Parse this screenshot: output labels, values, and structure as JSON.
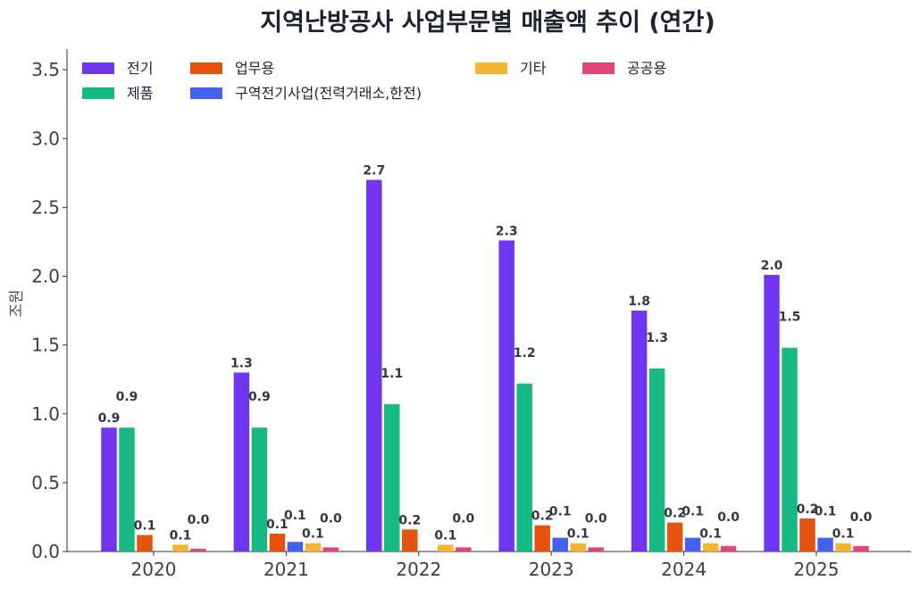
{
  "chart_data": {
    "type": "bar",
    "title": "지역난방공사 사업부문별 매출액 추이 (연간)",
    "xlabel": "",
    "ylabel": "조원",
    "ylim": [
      0,
      3.65
    ],
    "yticks": [
      "0.0",
      "0.5",
      "1.0",
      "1.5",
      "2.0",
      "2.5",
      "3.0",
      "3.5"
    ],
    "ytick_values": [
      0,
      0.5,
      1.0,
      1.5,
      2.0,
      2.5,
      3.0,
      3.5
    ],
    "grid": false,
    "legend_position": "top-left",
    "categories": [
      "2020",
      "2021",
      "2022",
      "2023",
      "2024",
      "2025"
    ],
    "series": [
      {
        "name": "전기",
        "color": "#6f35f0",
        "values": [
          0.9,
          1.3,
          2.7,
          2.26,
          1.75,
          2.01
        ]
      },
      {
        "name": "제품",
        "color": "#16b884",
        "values": [
          0.9,
          0.9,
          1.07,
          1.22,
          1.33,
          1.48
        ]
      },
      {
        "name": "업무용",
        "color": "#e4540e",
        "values": [
          0.12,
          0.13,
          0.16,
          0.19,
          0.21,
          0.24
        ]
      },
      {
        "name": "구역전기사업(전력거래소,한전)",
        "color": "#4361ee",
        "values": [
          0.0,
          0.07,
          0.0,
          0.1,
          0.1,
          0.1
        ]
      },
      {
        "name": "기타",
        "color": "#f4b630",
        "values": [
          0.05,
          0.06,
          0.05,
          0.06,
          0.06,
          0.06
        ]
      },
      {
        "name": "공공용",
        "color": "#e0457b",
        "values": [
          0.02,
          0.03,
          0.03,
          0.03,
          0.04,
          0.04
        ]
      }
    ],
    "data_labels": [
      [
        "0.9",
        "1.3",
        "2.7",
        "2.3",
        "1.8",
        "2.0"
      ],
      [
        "0.9",
        "0.9",
        "1.1",
        "1.2",
        "1.3",
        "1.5"
      ],
      [
        "0.1",
        "0.1",
        "0.2",
        "0.2",
        "0.2",
        "0.2"
      ],
      [
        "",
        "0.1",
        "",
        "0.1",
        "0.1",
        "0.1"
      ],
      [
        "0.1",
        "0.1",
        "0.1",
        "0.1",
        "0.1",
        "0.1"
      ],
      [
        "0.0",
        "0.0",
        "0.0",
        "0.0",
        "0.0",
        "0.0"
      ]
    ]
  }
}
